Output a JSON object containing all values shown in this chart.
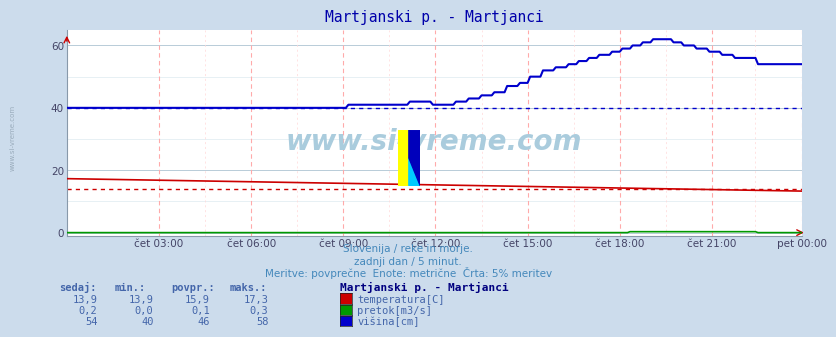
{
  "title": "Martjanski p. - Martjanci",
  "title_color": "#0000aa",
  "bg_color": "#ccdcec",
  "plot_bg_color": "#ffffff",
  "grid_color_h": "#b8ccd8",
  "grid_color_v_major": "#ffcccc",
  "grid_color_v_minor": "#e8d8d8",
  "xlabel_ticks": [
    "čet 03:00",
    "čet 06:00",
    "čet 09:00",
    "čet 12:00",
    "čet 15:00",
    "čet 18:00",
    "čet 21:00",
    "pet 00:00"
  ],
  "ylabel_ticks": [
    0,
    20,
    40,
    60
  ],
  "ylim": [
    -1,
    65
  ],
  "xlim": [
    0,
    287
  ],
  "subtitle1": "Slovenija / reke in morje.",
  "subtitle2": "zadnji dan / 5 minut.",
  "subtitle3": "Meritve: povprečne  Enote: metrične  Črta: 5% meritev",
  "subtitle_color": "#4488bb",
  "watermark": "www.si-vreme.com",
  "watermark_color": "#aaccdd",
  "legend_title": "Martjanski p. - Martjanci",
  "legend_title_color": "#000080",
  "legend_labels": [
    "temperatura[C]",
    "pretok[m3/s]",
    "višina[cm]"
  ],
  "legend_colors": [
    "#cc0000",
    "#009900",
    "#0000cc"
  ],
  "table_headers": [
    "sedaj:",
    "min.:",
    "povpr.:",
    "maks.:"
  ],
  "table_values": [
    [
      "13,9",
      "13,9",
      "15,9",
      "17,3"
    ],
    [
      "0,2",
      "0,0",
      "0,1",
      "0,3"
    ],
    [
      "54",
      "40",
      "46",
      "58"
    ]
  ],
  "table_color": "#4466aa",
  "sidebar_text": "www.si-vreme.com",
  "sidebar_color": "#9aacbc",
  "temp_5pct": 13.9,
  "height_5pct": 40,
  "tick_positions": [
    36,
    72,
    108,
    144,
    180,
    216,
    252,
    287
  ]
}
